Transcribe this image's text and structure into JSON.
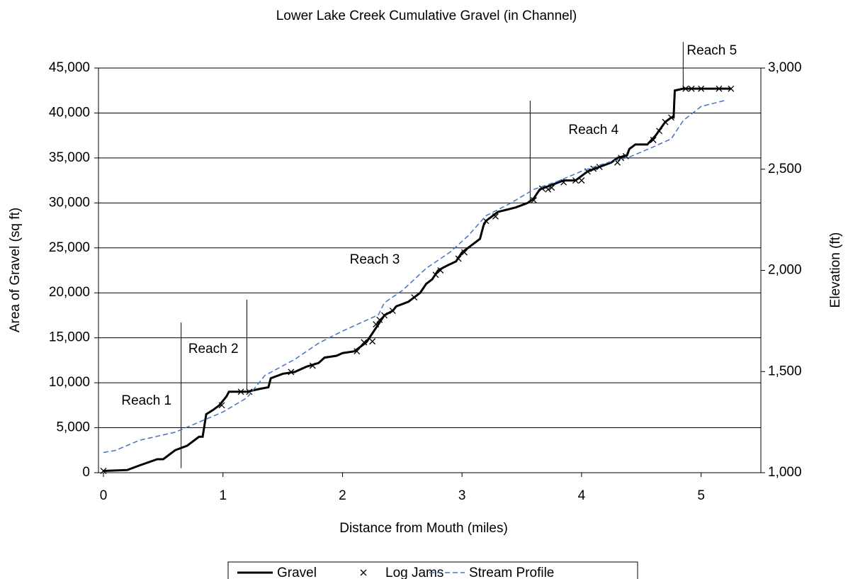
{
  "chart_data": {
    "type": "combo",
    "title": "Lower Lake Creek Cumulative Gravel (in Channel)",
    "x_label": "Distance from Mouth (miles)",
    "y_label": "Area of Gravel (sq ft)",
    "y2_label": "Elevation (ft)",
    "xlim": [
      0,
      5.5
    ],
    "xticks": [
      0,
      1,
      2,
      3,
      4,
      5
    ],
    "ylim": [
      0,
      45000
    ],
    "yticks": [
      0,
      {
        "value": 5000,
        "label": "5,000"
      },
      {
        "value": 10000,
        "label": "10,000"
      },
      {
        "value": 15000,
        "label": "15,000"
      },
      {
        "value": 20000,
        "label": "20,000"
      },
      {
        "value": 25000,
        "label": "25,000"
      },
      {
        "value": 30000,
        "label": "30,000"
      },
      {
        "value": 35000,
        "label": "35,000"
      },
      {
        "value": 40000,
        "label": "40,000"
      },
      {
        "value": 45000,
        "label": "45,000"
      }
    ],
    "y2lim": [
      1000,
      3000
    ],
    "y2ticks": [
      {
        "value": 1000,
        "label": "1,000"
      },
      {
        "value": 1500,
        "label": "1,500"
      },
      {
        "value": 2000,
        "label": "2,000"
      },
      {
        "value": 2500,
        "label": "2,500"
      },
      {
        "value": 3000,
        "label": "3,000"
      }
    ],
    "grid": true,
    "legend": "bottom",
    "series": [
      {
        "name": "Gravel",
        "type": "line",
        "color": "#000000",
        "x": [
          0,
          0.2,
          0.3,
          0.45,
          0.5,
          0.6,
          0.7,
          0.8,
          0.83,
          0.86,
          0.92,
          0.97,
          1.03,
          1.05,
          1.12,
          1.2,
          1.3,
          1.38,
          1.4,
          1.5,
          1.6,
          1.7,
          1.8,
          1.85,
          1.95,
          2.0,
          2.1,
          2.2,
          2.3,
          2.35,
          2.42,
          2.45,
          2.55,
          2.6,
          2.65,
          2.7,
          2.75,
          2.8,
          2.87,
          2.95,
          3.0,
          3.1,
          3.15,
          3.18,
          3.2,
          3.3,
          3.45,
          3.55,
          3.6,
          3.65,
          3.75,
          3.85,
          3.95,
          4.05,
          4.15,
          4.25,
          4.3,
          4.38,
          4.4,
          4.45,
          4.55,
          4.62,
          4.7,
          4.75,
          4.77,
          4.78,
          4.85,
          5.0,
          5.25
        ],
        "values": [
          200,
          300,
          800,
          1500,
          1500,
          2500,
          3000,
          4000,
          4000,
          6500,
          7000,
          7500,
          8500,
          9000,
          9000,
          9000,
          9300,
          9500,
          10500,
          11000,
          11200,
          11800,
          12200,
          12800,
          13000,
          13300,
          13500,
          14500,
          16500,
          17500,
          18000,
          18500,
          19000,
          19500,
          20000,
          21000,
          21500,
          22500,
          23000,
          23500,
          24500,
          25500,
          26000,
          27500,
          28000,
          29000,
          29500,
          30000,
          30500,
          31500,
          32000,
          32500,
          32500,
          33500,
          34000,
          34500,
          35000,
          35300,
          36000,
          36500,
          36500,
          37500,
          39000,
          39500,
          39500,
          42500,
          42700,
          42700,
          42700
        ]
      },
      {
        "name": "Log Jams",
        "type": "scatter",
        "color": "#000000",
        "x": [
          0,
          0.99,
          1.15,
          1.22,
          1.57,
          1.75,
          2.12,
          2.18,
          2.25,
          2.28,
          2.31,
          2.35,
          2.42,
          2.6,
          2.78,
          2.82,
          2.97,
          3.02,
          3.2,
          3.28,
          3.6,
          3.67,
          3.72,
          3.75,
          3.85,
          3.95,
          4.0,
          4.05,
          4.1,
          4.15,
          4.3,
          4.33,
          4.37,
          4.6,
          4.65,
          4.7,
          4.75,
          4.87,
          4.92,
          5.0,
          5.15,
          5.25
        ],
        "values": [
          200,
          7500,
          9000,
          9000,
          11200,
          11900,
          13500,
          14500,
          14600,
          16500,
          17000,
          17500,
          18000,
          19500,
          22000,
          22500,
          23800,
          24500,
          28000,
          28500,
          30300,
          31600,
          31500,
          31700,
          32300,
          32500,
          32500,
          33500,
          33800,
          34000,
          34500,
          35000,
          35200,
          37000,
          38000,
          39000,
          39500,
          42700,
          42700,
          42700,
          42700,
          42700
        ]
      },
      {
        "name": "Stream Profile",
        "type": "line",
        "dashed": true,
        "axis": "y2",
        "color": "#4472c4",
        "x": [
          0,
          0.1,
          0.3,
          0.6,
          0.8,
          1.0,
          1.2,
          1.35,
          1.6,
          1.8,
          2.0,
          2.3,
          2.35,
          2.5,
          2.7,
          2.9,
          3.05,
          3.2,
          3.4,
          3.6,
          3.8,
          4.0,
          4.2,
          4.4,
          4.6,
          4.75,
          4.85,
          5.0,
          5.2
        ],
        "values": [
          1100,
          1110,
          1160,
          1200,
          1250,
          1300,
          1370,
          1480,
          1560,
          1640,
          1700,
          1780,
          1840,
          1900,
          2010,
          2090,
          2170,
          2270,
          2330,
          2400,
          2440,
          2490,
          2530,
          2560,
          2610,
          2650,
          2740,
          2810,
          2840
        ]
      }
    ],
    "annotations": [
      {
        "text": "Reach 1",
        "x": 0.36,
        "y": 7960
      },
      {
        "text": "Reach 2",
        "x": 0.92,
        "y": 13710
      },
      {
        "text": "Reach 3",
        "x": 2.27,
        "y": 23640
      },
      {
        "text": "Reach 4",
        "x": 4.1,
        "y": 38060
      },
      {
        "text": "Reach 5",
        "x": 5.09,
        "y": 46890
      }
    ],
    "reach_lines": [
      {
        "x": 0.65,
        "top": 16700,
        "bottom": 500
      },
      {
        "x": 1.2,
        "top": 19230,
        "bottom": 9300
      },
      {
        "x": 3.57,
        "top": 41370,
        "bottom": 30100
      },
      {
        "x": 4.85,
        "top": 47900,
        "bottom": 42700
      }
    ]
  }
}
